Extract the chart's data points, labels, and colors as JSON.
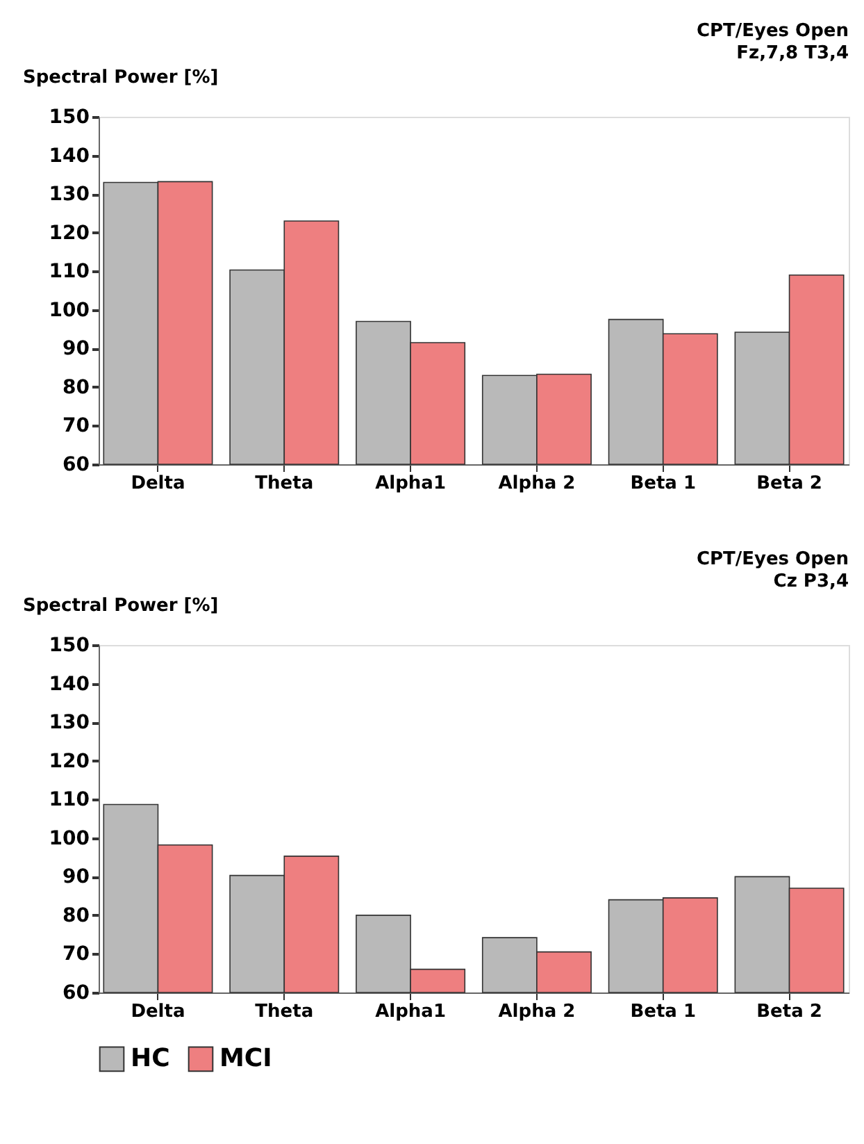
{
  "chart_data": [
    {
      "type": "bar",
      "title": "CPT/Eyes Open",
      "subtitle": "Fz,7,8 T3,4",
      "ylabel": "Spectral Power [%]",
      "categories": [
        "Delta",
        "Theta",
        "Alpha1",
        "Alpha 2",
        "Beta 1",
        "Beta 2"
      ],
      "series": [
        {
          "color": "#b9b9b9",
          "values": [
            133,
            110.3,
            97,
            83,
            97.5,
            94.2
          ]
        },
        {
          "color": "#ee7f80",
          "values": [
            133.2,
            123,
            91.5,
            83.3,
            93.8,
            109
          ]
        }
      ],
      "ylim": [
        60,
        150
      ],
      "yticks": [
        60,
        70,
        80,
        90,
        100,
        110,
        120,
        130,
        140,
        150
      ],
      "grid": false
    },
    {
      "type": "bar",
      "title": "CPT/Eyes Open",
      "subtitle": "Cz P3,4",
      "ylabel": "Spectral Power [%]",
      "categories": [
        "Delta",
        "Theta",
        "Alpha1",
        "Alpha 2",
        "Beta 1",
        "Beta 2"
      ],
      "series": [
        {
          "name": "HC",
          "color": "#b9b9b9",
          "values": [
            108.7,
            90.3,
            80,
            74.2,
            84,
            90
          ]
        },
        {
          "name": "MCI",
          "color": "#ee7f80",
          "values": [
            98.2,
            95.3,
            66,
            70.5,
            84.5,
            87
          ]
        }
      ],
      "ylim": [
        60,
        150
      ],
      "yticks": [
        60,
        70,
        80,
        90,
        100,
        110,
        120,
        130,
        140,
        150
      ],
      "grid": false,
      "legend": "bottom left"
    }
  ]
}
